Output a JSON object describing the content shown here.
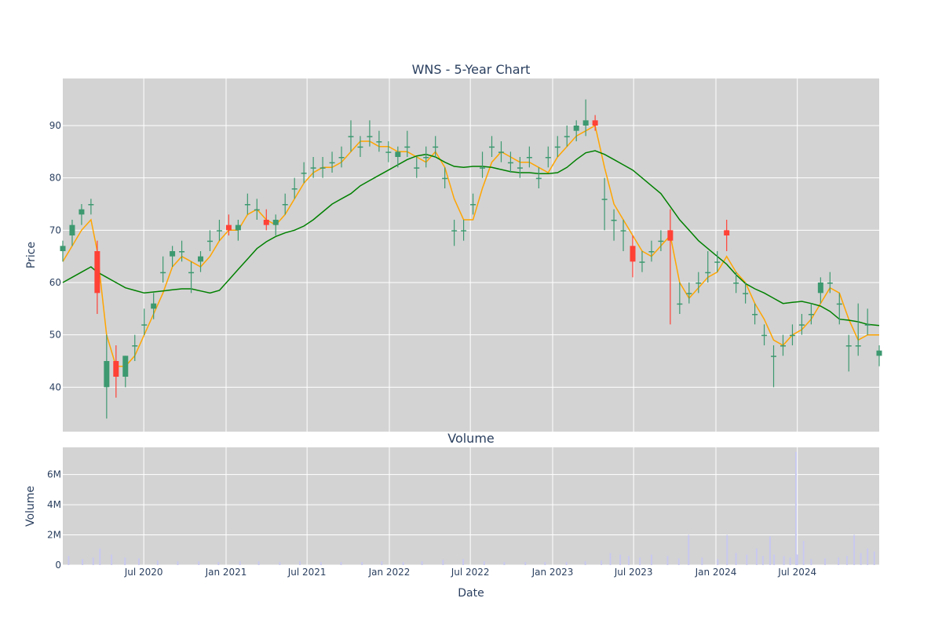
{
  "colors": {
    "up": "#3d9970",
    "down": "#ff4136",
    "ma_short": "#ffa500",
    "ma_long": "#008000",
    "volume": "#c8c8f0",
    "plot_bg": "#d3d3d3",
    "grid": "#ffffff",
    "text": "#2a3f5f"
  },
  "chart_data": [
    {
      "type": "candlestick",
      "title": "WNS - 5-Year Chart",
      "ylabel": "Price",
      "xlabel": "",
      "ylim": [
        31.5,
        99
      ],
      "yticks": [
        40,
        50,
        60,
        70,
        80,
        90
      ],
      "grid": true,
      "xlim": [
        "2020-01-02",
        "2024-12-31"
      ],
      "x": [
        "2020-01-02",
        "2020-01-23",
        "2020-02-13",
        "2020-03-05",
        "2020-03-19",
        "2020-04-09",
        "2020-04-30",
        "2020-05-21",
        "2020-06-11",
        "2020-07-02",
        "2020-07-23",
        "2020-08-13",
        "2020-09-03",
        "2020-09-24",
        "2020-10-15",
        "2020-11-05",
        "2020-11-26",
        "2020-12-17",
        "2021-01-07",
        "2021-01-28",
        "2021-02-18",
        "2021-03-11",
        "2021-04-01",
        "2021-04-22",
        "2021-05-13",
        "2021-06-03",
        "2021-06-24",
        "2021-07-15",
        "2021-08-05",
        "2021-08-26",
        "2021-09-16",
        "2021-10-07",
        "2021-10-28",
        "2021-11-18",
        "2021-12-09",
        "2021-12-30",
        "2022-01-20",
        "2022-02-10",
        "2022-03-03",
        "2022-03-24",
        "2022-04-14",
        "2022-05-05",
        "2022-05-26",
        "2022-06-16",
        "2022-07-07",
        "2022-07-28",
        "2022-08-18",
        "2022-09-08",
        "2022-09-29",
        "2022-10-20",
        "2022-11-10",
        "2022-12-01",
        "2022-12-22",
        "2023-01-12",
        "2023-02-02",
        "2023-02-23",
        "2023-03-16",
        "2023-04-06",
        "2023-04-27",
        "2023-05-18",
        "2023-06-08",
        "2023-06-29",
        "2023-07-20",
        "2023-08-10",
        "2023-08-31",
        "2023-09-21",
        "2023-10-12",
        "2023-11-02",
        "2023-11-23",
        "2023-12-14",
        "2024-01-04",
        "2024-01-25",
        "2024-02-15",
        "2024-03-07",
        "2024-03-28",
        "2024-04-18",
        "2024-05-09",
        "2024-05-30",
        "2024-06-20",
        "2024-07-11",
        "2024-08-01",
        "2024-08-22",
        "2024-09-12",
        "2024-10-03",
        "2024-10-24",
        "2024-11-14",
        "2024-12-05",
        "2024-12-31"
      ],
      "series": [
        {
          "open": [
            66,
            69,
            73,
            75,
            66,
            40,
            45,
            42,
            48,
            52,
            55,
            62,
            65,
            66,
            62,
            64,
            68,
            70,
            71,
            70,
            75,
            74,
            72,
            71,
            75,
            78,
            81,
            82,
            82,
            83,
            84,
            88,
            86,
            88,
            87,
            85,
            84,
            86,
            82,
            84,
            86,
            80,
            70,
            70,
            75,
            82,
            86,
            85,
            83,
            82,
            84,
            80,
            84,
            86,
            88,
            89,
            90,
            91,
            76,
            72,
            70,
            67,
            64,
            66,
            68,
            70,
            56,
            58,
            60,
            62,
            64,
            70,
            60,
            58,
            54,
            50,
            46,
            48,
            50,
            52,
            54,
            58,
            60,
            56,
            48,
            48,
            52,
            46
          ],
          "high": [
            68,
            72,
            75,
            76,
            68,
            50,
            48,
            46,
            50,
            55,
            58,
            65,
            67,
            68,
            64,
            66,
            70,
            72,
            73,
            72,
            77,
            76,
            74,
            73,
            77,
            80,
            83,
            84,
            84,
            85,
            86,
            91,
            88,
            91,
            89,
            87,
            86,
            89,
            84,
            86,
            88,
            82,
            72,
            72,
            77,
            85,
            88,
            87,
            85,
            84,
            86,
            82,
            86,
            88,
            90,
            91,
            95,
            92,
            80,
            74,
            72,
            69,
            66,
            68,
            70,
            74,
            60,
            60,
            62,
            66,
            66,
            72,
            62,
            60,
            56,
            52,
            48,
            50,
            52,
            54,
            56,
            61,
            62,
            58,
            50,
            56,
            55,
            48
          ],
          "low": [
            64,
            67,
            71,
            73,
            54,
            34,
            38,
            40,
            45,
            50,
            53,
            60,
            63,
            64,
            58,
            62,
            66,
            68,
            69,
            68,
            73,
            72,
            70,
            69,
            73,
            76,
            79,
            80,
            80,
            81,
            82,
            85,
            84,
            86,
            85,
            83,
            82,
            84,
            80,
            82,
            84,
            78,
            67,
            68,
            73,
            80,
            84,
            83,
            81,
            80,
            82,
            78,
            82,
            84,
            86,
            87,
            88,
            89,
            70,
            68,
            66,
            61,
            62,
            64,
            66,
            52,
            54,
            56,
            58,
            60,
            62,
            66,
            58,
            56,
            52,
            48,
            40,
            46,
            48,
            50,
            52,
            56,
            58,
            52,
            43,
            46,
            50,
            44
          ],
          "close": [
            67,
            71,
            74,
            75,
            58,
            45,
            42,
            46,
            48,
            52,
            56,
            62,
            66,
            66,
            62,
            65,
            68,
            70,
            70,
            71,
            75,
            74,
            71,
            72,
            75,
            78,
            81,
            82,
            82,
            83,
            84,
            88,
            86,
            88,
            87,
            85,
            85,
            86,
            82,
            84,
            86,
            80,
            70,
            70,
            75,
            82,
            86,
            85,
            83,
            82,
            84,
            80,
            84,
            86,
            88,
            90,
            91,
            90,
            76,
            72,
            70,
            64,
            64,
            66,
            68,
            68,
            56,
            58,
            60,
            62,
            64,
            69,
            60,
            58,
            54,
            50,
            46,
            48,
            50,
            52,
            54,
            60,
            60,
            56,
            48,
            48,
            52,
            47
          ]
        },
        {
          "name": "",
          "type": "line",
          "color_key": "ma_short",
          "values": [
            64,
            67,
            70,
            72,
            66,
            50,
            44,
            44,
            46,
            50,
            54,
            58,
            63,
            65,
            64,
            63,
            65,
            68,
            70,
            70,
            73,
            74,
            72,
            71,
            73,
            76,
            79,
            81,
            82,
            82,
            83,
            85,
            87,
            87,
            86,
            86,
            85,
            85,
            84,
            83,
            85,
            82,
            76,
            72,
            72,
            78,
            83,
            85,
            84,
            83,
            83,
            82,
            81,
            84,
            86,
            88,
            89,
            90,
            82,
            75,
            72,
            69,
            66,
            65,
            67,
            69,
            60,
            57,
            59,
            61,
            62,
            65,
            62,
            60,
            56,
            53,
            49,
            48,
            50,
            51,
            53,
            56,
            59,
            58,
            53,
            49,
            50,
            50
          ]
        },
        {
          "name": "",
          "type": "line",
          "color_key": "ma_long",
          "values": [
            60,
            61,
            62,
            63,
            62,
            61,
            60,
            59,
            58.5,
            58,
            58.2,
            58.4,
            58.6,
            58.8,
            58.8,
            58.4,
            58,
            58.5,
            60.5,
            62.5,
            64.5,
            66.5,
            67.8,
            68.8,
            69.5,
            70,
            70.8,
            72,
            73.5,
            75,
            76,
            77,
            78.5,
            79.5,
            80.5,
            81.5,
            82.5,
            83.5,
            84.2,
            84.5,
            84,
            83,
            82.2,
            82,
            82.2,
            82.2,
            82,
            81.6,
            81.2,
            81,
            81,
            80.8,
            80.8,
            81,
            82,
            83.5,
            84.8,
            85.2,
            84.5,
            83.5,
            82.5,
            81.5,
            80,
            78.5,
            77,
            74.5,
            72,
            70,
            68,
            66.5,
            65,
            63.5,
            61.5,
            59.8,
            58.8,
            58,
            57,
            56,
            56.2,
            56.4,
            56,
            55.5,
            54.5,
            53,
            52.8,
            52.5,
            52,
            51.8
          ]
        }
      ]
    },
    {
      "type": "bar",
      "title": "Volume",
      "xlabel": "Date",
      "ylabel": "Volume",
      "ylim": [
        0,
        7800000
      ],
      "yticks": [
        0,
        2000000,
        4000000,
        6000000
      ],
      "ytick_labels": [
        "0",
        "2M",
        "4M",
        "6M"
      ],
      "xticks": [
        "2020-07-01",
        "2021-01-01",
        "2021-07-01",
        "2022-01-01",
        "2022-07-01",
        "2023-01-01",
        "2023-07-01",
        "2024-01-01",
        "2024-07-01"
      ],
      "xtick_labels": [
        "Jul 2020",
        "Jan 2021",
        "Jul 2021",
        "Jan 2022",
        "Jul 2022",
        "Jan 2023",
        "Jul 2023",
        "Jan 2024",
        "Jul 2024"
      ],
      "x": [
        "2020-01-15",
        "2020-02-15",
        "2020-03-10",
        "2020-03-25",
        "2020-04-20",
        "2020-05-20",
        "2020-06-20",
        "2020-08-01",
        "2020-09-15",
        "2020-11-01",
        "2020-12-15",
        "2021-02-01",
        "2021-03-15",
        "2021-05-01",
        "2021-06-15",
        "2021-08-01",
        "2021-09-15",
        "2021-11-01",
        "2021-12-15",
        "2022-02-01",
        "2022-03-15",
        "2022-05-01",
        "2022-06-15",
        "2022-08-01",
        "2022-09-15",
        "2022-11-01",
        "2022-12-15",
        "2023-02-01",
        "2023-03-15",
        "2023-04-20",
        "2023-05-10",
        "2023-06-01",
        "2023-06-20",
        "2023-07-15",
        "2023-08-10",
        "2023-09-15",
        "2023-10-10",
        "2023-11-01",
        "2023-12-01",
        "2024-01-05",
        "2024-01-26",
        "2024-02-15",
        "2024-03-10",
        "2024-04-01",
        "2024-04-15",
        "2024-05-01",
        "2024-05-10",
        "2024-06-01",
        "2024-06-15",
        "2024-06-28",
        "2024-07-01",
        "2024-07-15",
        "2024-08-01",
        "2024-09-01",
        "2024-10-01",
        "2024-10-20",
        "2024-11-05",
        "2024-11-20",
        "2024-12-05",
        "2024-12-20"
      ],
      "values": [
        600000,
        400000,
        500000,
        1100000,
        700000,
        500000,
        450000,
        300000,
        250000,
        250000,
        200000,
        250000,
        250000,
        200000,
        250000,
        200000,
        200000,
        200000,
        250000,
        200000,
        250000,
        350000,
        400000,
        250000,
        200000,
        200000,
        200000,
        200000,
        250000,
        300000,
        800000,
        700000,
        600000,
        500000,
        700000,
        600000,
        450000,
        2000000,
        500000,
        400000,
        2000000,
        800000,
        700000,
        1100000,
        600000,
        1900000,
        700000,
        600000,
        500000,
        7500000,
        700000,
        1600000,
        400000,
        450000,
        500000,
        600000,
        2000000,
        800000,
        1100000,
        900000
      ]
    }
  ]
}
